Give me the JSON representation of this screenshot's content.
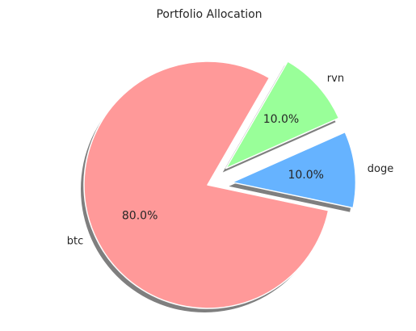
{
  "chart_data": {
    "type": "pie",
    "title": "Portfolio Allocation",
    "labels": [
      "btc",
      "doge",
      "rvn"
    ],
    "values": [
      80,
      10,
      10
    ],
    "percent_labels": [
      "80.0%",
      "10.0%",
      "10.0%"
    ],
    "colors": [
      "#ff9999",
      "#66b3ff",
      "#99ff99"
    ],
    "explode": [
      0,
      0.2,
      0.2
    ],
    "startangle": 60,
    "shadow": true,
    "legend": "none"
  }
}
